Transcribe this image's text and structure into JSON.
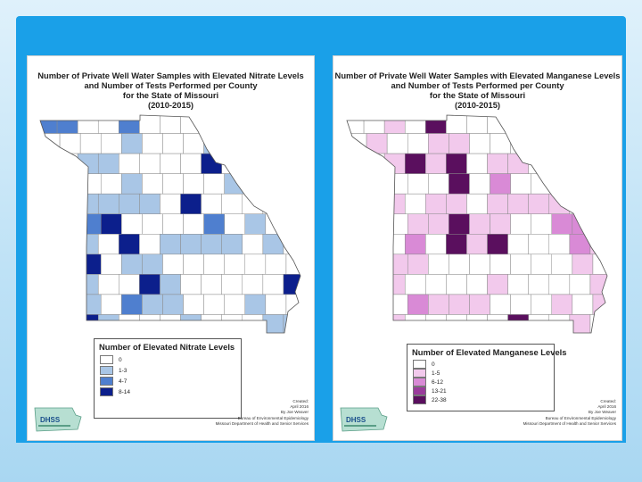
{
  "nitrate_map": {
    "title_lines": [
      "Number of Private Well Water Samples with Elevated Nitrate Levels",
      "and Number of Tests Performed per County",
      "for the State of Missouri",
      "(2010-2015)"
    ],
    "legend": {
      "title": "Number of Elevated Nitrate Levels",
      "items": [
        {
          "label": "0",
          "color": "#ffffff"
        },
        {
          "label": "1-3",
          "color": "#a9c6e6"
        },
        {
          "label": "4-7",
          "color": "#4f7fcf"
        },
        {
          "label": "8-14",
          "color": "#0c1f8c"
        }
      ]
    },
    "credits": [
      "Created:",
      "April 2016",
      "By Joe Weaver",
      "Bureau of Environmental Epidemiology",
      "Missouri Department of Health and Senior Services"
    ],
    "logo": "DHSS"
  },
  "manganese_map": {
    "title_lines": [
      "Number of Private Well Water Samples with Elevated Manganese Levels",
      "and Number of Tests Performed per County",
      "for the State of Missouri",
      "(2010-2015)"
    ],
    "legend": {
      "title": "Number of Elevated Manganese Levels",
      "items": [
        {
          "label": "0",
          "color": "#ffffff"
        },
        {
          "label": "1-5",
          "color": "#f2c9ec"
        },
        {
          "label": "6-12",
          "color": "#d98ad6"
        },
        {
          "label": "13-21",
          "color": "#9a3b9c"
        },
        {
          "label": "22-38",
          "color": "#5a0f5e"
        }
      ]
    },
    "credits": [
      "Created:",
      "April 2016",
      "By Joe Weaver",
      "Bureau of Environmental Epidemiology",
      "Missouri Department of Health and Senior Services"
    ],
    "logo": "DHSS"
  }
}
